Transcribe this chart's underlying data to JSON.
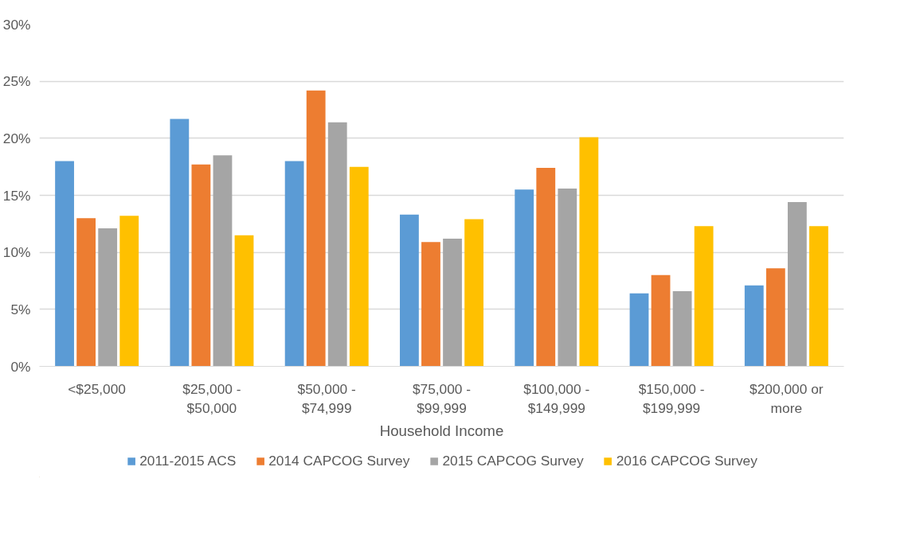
{
  "chart_data": {
    "type": "bar",
    "xlabel": "Household Income",
    "categories": [
      "<$25,000",
      "$25,000 -\n$50,000",
      "$50,000 -\n$74,999",
      "$75,000 -\n$99,999",
      "$100,000 -\n$149,999",
      "$150,000 -\n$199,999",
      "$200,000 or\nmore"
    ],
    "series": [
      {
        "name": "2011-2015 ACS",
        "color": "#5b9bd5",
        "values": [
          18.0,
          21.7,
          18.0,
          13.3,
          15.5,
          6.4,
          7.1
        ]
      },
      {
        "name": "2014 CAPCOG Survey",
        "color": "#ed7d31",
        "values": [
          13.0,
          17.7,
          24.2,
          10.9,
          17.4,
          8.0,
          8.6
        ]
      },
      {
        "name": "2015 CAPCOG Survey",
        "color": "#a5a5a5",
        "values": [
          12.1,
          18.5,
          21.4,
          11.2,
          15.6,
          6.6,
          14.4
        ]
      },
      {
        "name": "2016 CAPCOG Survey",
        "color": "#ffc000",
        "values": [
          13.2,
          11.5,
          17.5,
          12.9,
          20.1,
          12.3,
          12.3
        ]
      }
    ],
    "ylim": [
      0,
      30
    ],
    "yticks": [
      {
        "value": 0,
        "label": "0%"
      },
      {
        "value": 5,
        "label": "5%"
      },
      {
        "value": 10,
        "label": "10%"
      },
      {
        "value": 15,
        "label": "15%"
      },
      {
        "value": 20,
        "label": "20%"
      },
      {
        "value": 25,
        "label": "25%"
      },
      {
        "value": 30,
        "label": "30%"
      }
    ],
    "grid": "y",
    "legend": "bottom"
  }
}
